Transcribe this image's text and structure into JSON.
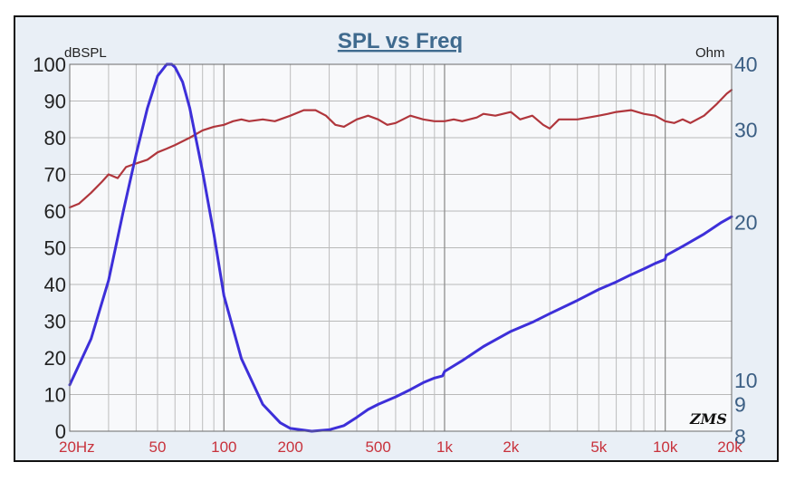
{
  "chart_data": {
    "type": "line",
    "title": "SPL vs Freq",
    "left_axis": {
      "unit_label": "dBSPL",
      "range": [
        0,
        100
      ],
      "ticks": [
        "0",
        "10",
        "20",
        "30",
        "40",
        "50",
        "60",
        "70",
        "80",
        "90",
        "100"
      ]
    },
    "right_axis": {
      "unit_label": "Ohm",
      "ticks": [
        {
          "label": "8",
          "value": 8
        },
        {
          "label": "9",
          "value": 9
        },
        {
          "label": "10",
          "value": 10
        },
        {
          "label": "20",
          "value": 20
        },
        {
          "label": "30",
          "value": 30
        },
        {
          "label": "40",
          "value": 40
        }
      ],
      "scale": "log",
      "range": [
        8,
        40
      ]
    },
    "x_axis": {
      "scale": "log",
      "range": [
        20,
        20000
      ],
      "ticks": [
        {
          "label": "20Hz",
          "value": 20
        },
        {
          "label": "50",
          "value": 50
        },
        {
          "label": "100",
          "value": 100
        },
        {
          "label": "200",
          "value": 200
        },
        {
          "label": "500",
          "value": 500
        },
        {
          "label": "1k",
          "value": 1000
        },
        {
          "label": "2k",
          "value": 2000
        },
        {
          "label": "5k",
          "value": 5000
        },
        {
          "label": "10k",
          "value": 10000
        },
        {
          "label": "20k",
          "value": 20000
        }
      ]
    },
    "grid": true,
    "series": [
      {
        "axis": "left",
        "color": "#b0363c",
        "points": [
          [
            20,
            61
          ],
          [
            22,
            62
          ],
          [
            25,
            65
          ],
          [
            28,
            68
          ],
          [
            30,
            70
          ],
          [
            33,
            69
          ],
          [
            36,
            72
          ],
          [
            40,
            73
          ],
          [
            45,
            74
          ],
          [
            50,
            76
          ],
          [
            55,
            77
          ],
          [
            60,
            78
          ],
          [
            70,
            80
          ],
          [
            80,
            82
          ],
          [
            90,
            83
          ],
          [
            100,
            83.5
          ],
          [
            110,
            84.5
          ],
          [
            120,
            85
          ],
          [
            130,
            84.5
          ],
          [
            150,
            85
          ],
          [
            170,
            84.5
          ],
          [
            200,
            86
          ],
          [
            230,
            87.5
          ],
          [
            260,
            87.5
          ],
          [
            290,
            86
          ],
          [
            320,
            83.5
          ],
          [
            350,
            83
          ],
          [
            400,
            85
          ],
          [
            450,
            86
          ],
          [
            500,
            85
          ],
          [
            550,
            83.5
          ],
          [
            600,
            84
          ],
          [
            700,
            86
          ],
          [
            800,
            85
          ],
          [
            900,
            84.5
          ],
          [
            1000,
            84.5
          ],
          [
            1100,
            85
          ],
          [
            1200,
            84.5
          ],
          [
            1400,
            85.5
          ],
          [
            1500,
            86.5
          ],
          [
            1700,
            86
          ],
          [
            2000,
            87
          ],
          [
            2200,
            85
          ],
          [
            2500,
            86
          ],
          [
            2800,
            83.5
          ],
          [
            3000,
            82.5
          ],
          [
            3300,
            85
          ],
          [
            4000,
            85
          ],
          [
            4500,
            85.5
          ],
          [
            5000,
            86
          ],
          [
            5500,
            86.5
          ],
          [
            6000,
            87
          ],
          [
            7000,
            87.5
          ],
          [
            8000,
            86.5
          ],
          [
            9000,
            86
          ],
          [
            10000,
            84.5
          ],
          [
            11000,
            84
          ],
          [
            12000,
            85
          ],
          [
            13000,
            84
          ],
          [
            15000,
            86
          ],
          [
            17000,
            89
          ],
          [
            19000,
            92
          ],
          [
            20000,
            93
          ]
        ]
      },
      {
        "axis": "right",
        "color": "#3d2fd9",
        "points": [
          [
            20,
            9.8
          ],
          [
            25,
            12
          ],
          [
            30,
            15.5
          ],
          [
            35,
            21
          ],
          [
            40,
            27
          ],
          [
            45,
            33
          ],
          [
            50,
            38
          ],
          [
            55,
            40
          ],
          [
            58,
            40
          ],
          [
            60,
            39.5
          ],
          [
            65,
            37
          ],
          [
            70,
            33
          ],
          [
            80,
            25
          ],
          [
            90,
            19
          ],
          [
            100,
            14.5
          ],
          [
            120,
            11
          ],
          [
            150,
            9
          ],
          [
            180,
            8.3
          ],
          [
            200,
            8.1
          ],
          [
            250,
            8.0
          ],
          [
            300,
            8.05
          ],
          [
            350,
            8.2
          ],
          [
            400,
            8.5
          ],
          [
            450,
            8.8
          ],
          [
            500,
            9.0
          ],
          [
            600,
            9.3
          ],
          [
            700,
            9.6
          ],
          [
            800,
            9.9
          ],
          [
            900,
            10.1
          ],
          [
            980,
            10.2
          ],
          [
            1000,
            10.4
          ],
          [
            1200,
            10.9
          ],
          [
            1500,
            11.6
          ],
          [
            2000,
            12.4
          ],
          [
            2500,
            12.9
          ],
          [
            3000,
            13.4
          ],
          [
            4000,
            14.2
          ],
          [
            5000,
            14.9
          ],
          [
            6000,
            15.4
          ],
          [
            7000,
            15.9
          ],
          [
            8000,
            16.3
          ],
          [
            9000,
            16.7
          ],
          [
            10000,
            17.0
          ],
          [
            10100,
            17.3
          ],
          [
            12000,
            18.0
          ],
          [
            15000,
            19.0
          ],
          [
            18000,
            20.0
          ],
          [
            20000,
            20.5
          ]
        ]
      }
    ]
  }
}
